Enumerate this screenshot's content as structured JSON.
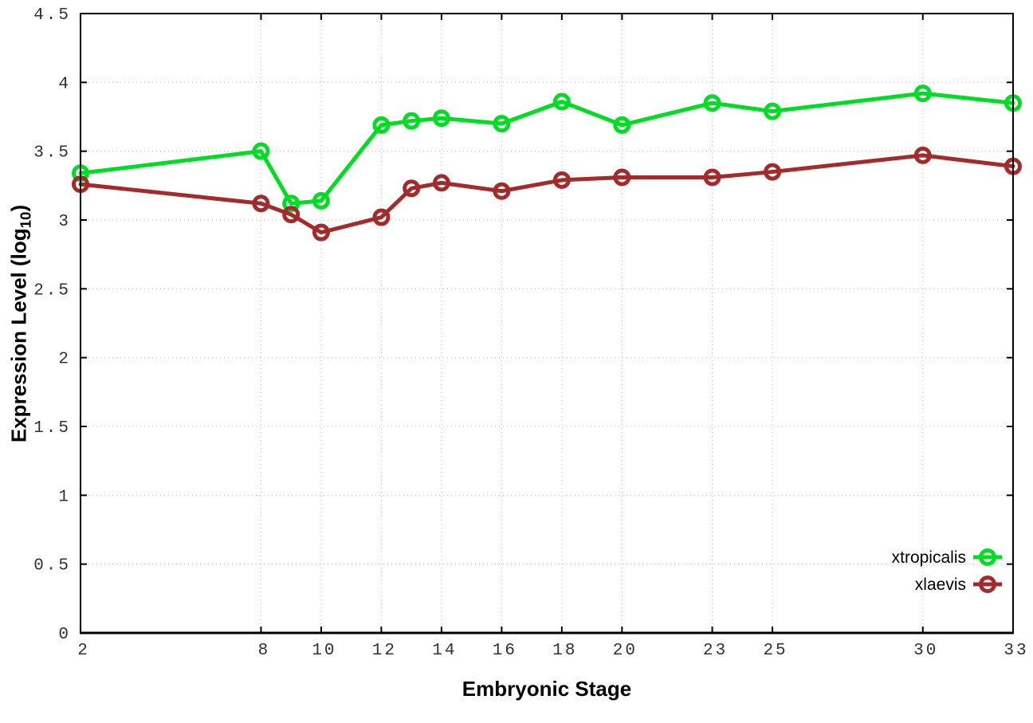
{
  "figure": {
    "xlabel": "Embryonic Stage",
    "ylabel": {
      "prefix": "Expression Level (log",
      "sub": "10",
      "suffix": ")"
    }
  },
  "chart_data": {
    "type": "line",
    "title": "",
    "xlabel": "Embryonic Stage",
    "ylabel": "Expression Level (log10)",
    "x": [
      2,
      8,
      9,
      10,
      12,
      13,
      14,
      16,
      18,
      20,
      23,
      25,
      30,
      33
    ],
    "xticks": [
      2,
      8,
      10,
      12,
      14,
      16,
      18,
      20,
      23,
      25,
      30,
      33
    ],
    "yticks": [
      0,
      0.5,
      1,
      1.5,
      2,
      2.5,
      3,
      3.5,
      4,
      4.5
    ],
    "xlim": [
      2,
      33
    ],
    "ylim": [
      0,
      4.5
    ],
    "grid": true,
    "grid_style": "dotted",
    "legend_position": "bottom-right",
    "series": [
      {
        "name": "xtropicalis",
        "color": "#00dd22",
        "marker": "open-circle",
        "values": [
          3.34,
          3.5,
          3.12,
          3.14,
          3.69,
          3.72,
          3.74,
          3.7,
          3.86,
          3.69,
          3.85,
          3.79,
          3.92,
          3.85
        ]
      },
      {
        "name": "xlaevis",
        "color": "#a42b2b",
        "marker": "open-circle",
        "values": [
          3.26,
          3.12,
          3.04,
          2.91,
          3.02,
          3.23,
          3.27,
          3.21,
          3.29,
          3.31,
          3.31,
          3.35,
          3.47,
          3.39
        ]
      }
    ],
    "axis_color": "#000000",
    "grid_color": "#b8b8b8",
    "tick_label_color": "#303030"
  }
}
